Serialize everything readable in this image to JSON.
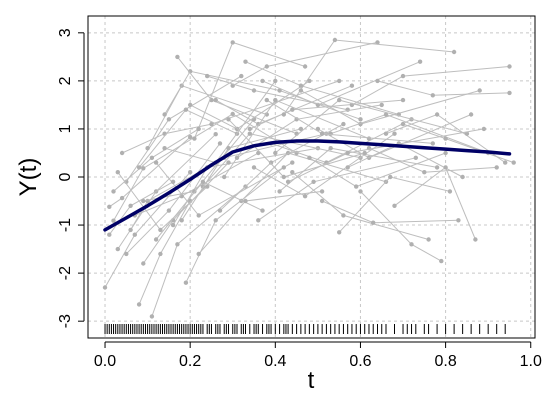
{
  "chart_data": {
    "type": "line",
    "title": "",
    "xlabel": "t",
    "ylabel": "Y(t)",
    "xlim": [
      -0.04,
      1.01
    ],
    "ylim": [
      -3.35,
      3.35
    ],
    "x_ticks": [
      0.0,
      0.2,
      0.4,
      0.6,
      0.8,
      1.0
    ],
    "x_tick_labels": [
      "0.0",
      "0.2",
      "0.4",
      "0.6",
      "0.8",
      "1.0"
    ],
    "y_ticks": [
      -3,
      -2,
      -1,
      0,
      1,
      2,
      3
    ],
    "y_tick_labels": [
      "-3",
      "-2",
      "-1",
      "0",
      "1",
      "2",
      "3"
    ],
    "grid": true,
    "colors": {
      "mean_curve": "#000066",
      "trajectories": "#bebebe",
      "points": "#b0b0b0",
      "rug": "#000000"
    },
    "series": [
      {
        "role": "mean",
        "x": [
          0.0,
          0.05,
          0.1,
          0.15,
          0.2,
          0.25,
          0.3,
          0.35,
          0.4,
          0.45,
          0.5,
          0.55,
          0.6,
          0.65,
          0.7,
          0.75,
          0.8,
          0.85,
          0.9,
          0.95
        ],
        "y": [
          -1.1,
          -0.85,
          -0.6,
          -0.33,
          -0.05,
          0.25,
          0.52,
          0.65,
          0.72,
          0.75,
          0.75,
          0.73,
          0.7,
          0.67,
          0.64,
          0.61,
          0.58,
          0.55,
          0.52,
          0.48
        ]
      },
      {
        "role": "individual",
        "trajectories": [
          [
            [
              0.01,
              -0.62
            ],
            [
              0.04,
              -0.44
            ],
            [
              0.2,
              0.83
            ]
          ],
          [
            [
              0.02,
              -0.91
            ],
            [
              0.09,
              0.18
            ],
            [
              0.3,
              1.31
            ],
            [
              0.45,
              0.5
            ]
          ],
          [
            [
              0.03,
              -1.5
            ],
            [
              0.12,
              -0.3
            ],
            [
              0.26,
              0.89
            ]
          ],
          [
            [
              0.0,
              -2.3
            ],
            [
              0.07,
              -1.2
            ],
            [
              0.2,
              0.1
            ]
          ],
          [
            [
              0.05,
              -0.1
            ],
            [
              0.15,
              1.2
            ],
            [
              0.32,
              2.1
            ]
          ],
          [
            [
              0.06,
              -1.1
            ],
            [
              0.1,
              -0.5
            ],
            [
              0.28,
              0.4
            ],
            [
              0.52,
              0.9
            ]
          ],
          [
            [
              0.08,
              -2.65
            ],
            [
              0.13,
              -1.6
            ],
            [
              0.2,
              -0.5
            ]
          ],
          [
            [
              0.1,
              0.6
            ],
            [
              0.18,
              1.9
            ],
            [
              0.38,
              1.3
            ]
          ],
          [
            [
              0.11,
              -2.9
            ],
            [
              0.17,
              -1.4
            ],
            [
              0.33,
              -0.2
            ]
          ],
          [
            [
              0.12,
              0.3
            ],
            [
              0.22,
              -0.8
            ],
            [
              0.44,
              0.3
            ]
          ],
          [
            [
              0.14,
              1.3
            ],
            [
              0.2,
              2.2
            ],
            [
              0.41,
              1.8
            ],
            [
              0.6,
              1.2
            ]
          ],
          [
            [
              0.16,
              -1.0
            ],
            [
              0.24,
              0.2
            ],
            [
              0.5,
              0.6
            ]
          ],
          [
            [
              0.04,
              0.5
            ],
            [
              0.14,
              0.9
            ],
            [
              0.25,
              1.1
            ],
            [
              0.55,
              2.0
            ]
          ],
          [
            [
              0.07,
              -0.8
            ],
            [
              0.18,
              -0.4
            ],
            [
              0.36,
              0.5
            ]
          ],
          [
            [
              0.09,
              -1.8
            ],
            [
              0.16,
              -0.9
            ],
            [
              0.29,
              0.3
            ]
          ],
          [
            [
              0.17,
              2.5
            ],
            [
              0.25,
              1.6
            ],
            [
              0.45,
              0.9
            ]
          ],
          [
            [
              0.19,
              -2.2
            ],
            [
              0.26,
              -0.9
            ],
            [
              0.42,
              0.2
            ]
          ],
          [
            [
              0.21,
              0.8
            ],
            [
              0.3,
              2.8
            ],
            [
              0.47,
              2.3
            ]
          ],
          [
            [
              0.23,
              -0.2
            ],
            [
              0.34,
              0.9
            ],
            [
              0.6,
              0.4
            ]
          ],
          [
            [
              0.26,
              1.6
            ],
            [
              0.36,
              1.1
            ],
            [
              0.58,
              1.9
            ]
          ],
          [
            [
              0.28,
              0.0
            ],
            [
              0.4,
              1.6
            ],
            [
              0.62,
              0.8
            ]
          ],
          [
            [
              0.3,
              1.9
            ],
            [
              0.38,
              2.3
            ],
            [
              0.64,
              2.8
            ]
          ],
          [
            [
              0.32,
              -0.5
            ],
            [
              0.43,
              0.5
            ],
            [
              0.66,
              -0.1
            ]
          ],
          [
            [
              0.34,
              1.0
            ],
            [
              0.44,
              1.4
            ],
            [
              0.7,
              1.6
            ]
          ],
          [
            [
              0.35,
              0.2
            ],
            [
              0.47,
              -0.4
            ],
            [
              0.68,
              0.9
            ]
          ],
          [
            [
              0.37,
              2.0
            ],
            [
              0.5,
              1.5
            ],
            [
              0.74,
              2.4
            ]
          ],
          [
            [
              0.39,
              0.7
            ],
            [
              0.52,
              0.3
            ],
            [
              0.72,
              1.2
            ]
          ],
          [
            [
              0.41,
              -0.3
            ],
            [
              0.53,
              0.6
            ],
            [
              0.78,
              0.2
            ]
          ],
          [
            [
              0.42,
              1.3
            ],
            [
              0.54,
              2.85
            ],
            [
              0.82,
              2.6
            ]
          ],
          [
            [
              0.44,
              0.1
            ],
            [
              0.56,
              -0.8
            ],
            [
              0.76,
              -1.3
            ]
          ],
          [
            [
              0.46,
              1.8
            ],
            [
              0.6,
              1.1
            ],
            [
              0.88,
              1.8
            ]
          ],
          [
            [
              0.48,
              0.4
            ],
            [
              0.59,
              -0.2
            ],
            [
              0.8,
              0.5
            ]
          ],
          [
            [
              0.5,
              1.0
            ],
            [
              0.62,
              0.4
            ],
            [
              0.86,
              1.3
            ]
          ],
          [
            [
              0.51,
              -0.5
            ],
            [
              0.63,
              -0.95
            ],
            [
              0.83,
              -0.9
            ]
          ],
          [
            [
              0.53,
              0.9
            ],
            [
              0.66,
              1.3
            ],
            [
              0.9,
              0.5
            ]
          ],
          [
            [
              0.55,
              -1.15
            ],
            [
              0.67,
              0.0
            ],
            [
              0.81,
              -0.3
            ]
          ],
          [
            [
              0.57,
              0.2
            ],
            [
              0.69,
              0.7
            ],
            [
              0.84,
              0.0
            ]
          ],
          [
            [
              0.58,
              1.5
            ],
            [
              0.7,
              2.1
            ],
            [
              0.95,
              2.3
            ]
          ],
          [
            [
              0.6,
              -0.3
            ],
            [
              0.72,
              -1.4
            ],
            [
              0.79,
              -1.75
            ]
          ],
          [
            [
              0.62,
              0.6
            ],
            [
              0.75,
              0.1
            ],
            [
              0.92,
              0.2
            ]
          ],
          [
            [
              0.64,
              2.0
            ],
            [
              0.77,
              1.7
            ],
            [
              0.95,
              1.75
            ]
          ],
          [
            [
              0.66,
              0.9
            ],
            [
              0.78,
              1.3
            ],
            [
              0.94,
              0.3
            ]
          ],
          [
            [
              0.68,
              -0.6
            ],
            [
              0.8,
              0.2
            ],
            [
              0.87,
              -1.3
            ]
          ],
          [
            [
              0.7,
              1.1
            ],
            [
              0.8,
              0.8
            ],
            [
              0.96,
              0.3
            ]
          ],
          [
            [
              0.01,
              -1.2
            ],
            [
              0.06,
              -0.6
            ],
            [
              0.16,
              -0.1
            ]
          ],
          [
            [
              0.02,
              -0.3
            ],
            [
              0.11,
              0.4
            ],
            [
              0.22,
              1.0
            ]
          ],
          [
            [
              0.03,
              0.1
            ],
            [
              0.13,
              -1.1
            ],
            [
              0.24,
              -0.2
            ]
          ],
          [
            [
              0.05,
              -1.6
            ],
            [
              0.15,
              -0.7
            ],
            [
              0.27,
              0.7
            ]
          ],
          [
            [
              0.08,
              0.2
            ],
            [
              0.19,
              1.4
            ],
            [
              0.31,
              0.9
            ]
          ],
          [
            [
              0.09,
              -0.5
            ],
            [
              0.21,
              -0.3
            ],
            [
              0.35,
              1.2
            ]
          ],
          [
            [
              0.12,
              -1.3
            ],
            [
              0.23,
              -0.1
            ],
            [
              0.37,
              -0.7
            ]
          ],
          [
            [
              0.14,
              0.6
            ],
            [
              0.26,
              0.3
            ],
            [
              0.4,
              2.0
            ]
          ],
          [
            [
              0.18,
              -0.9
            ],
            [
              0.29,
              0.6
            ],
            [
              0.46,
              1.0
            ]
          ],
          [
            [
              0.2,
              1.5
            ],
            [
              0.31,
              1.0
            ],
            [
              0.48,
              2.0
            ]
          ],
          [
            [
              0.22,
              -1.6
            ],
            [
              0.33,
              -0.5
            ],
            [
              0.51,
              -0.3
            ]
          ],
          [
            [
              0.24,
              2.1
            ],
            [
              0.35,
              1.8
            ],
            [
              0.57,
              1.4
            ]
          ],
          [
            [
              0.27,
              -0.7
            ],
            [
              0.39,
              0.3
            ],
            [
              0.56,
              1.1
            ]
          ],
          [
            [
              0.29,
              1.2
            ],
            [
              0.42,
              0.0
            ],
            [
              0.61,
              0.5
            ]
          ],
          [
            [
              0.31,
              0.4
            ],
            [
              0.45,
              1.2
            ],
            [
              0.65,
              1.5
            ]
          ],
          [
            [
              0.33,
              2.4
            ],
            [
              0.46,
              1.9
            ],
            [
              0.69,
              1.3
            ]
          ],
          [
            [
              0.36,
              -0.9
            ],
            [
              0.49,
              -0.1
            ],
            [
              0.73,
              0.4
            ]
          ],
          [
            [
              0.38,
              1.6
            ],
            [
              0.51,
              0.9
            ],
            [
              0.77,
              0.7
            ]
          ],
          [
            [
              0.4,
              0.5
            ],
            [
              0.55,
              1.6
            ],
            [
              0.85,
              0.9
            ]
          ],
          [
            [
              0.43,
              -0.1
            ],
            [
              0.57,
              0.5
            ],
            [
              0.89,
              1.0
            ]
          ]
        ]
      }
    ],
    "rug_t": [
      0.0,
      0.005,
      0.01,
      0.015,
      0.02,
      0.025,
      0.03,
      0.035,
      0.04,
      0.045,
      0.05,
      0.055,
      0.06,
      0.065,
      0.07,
      0.075,
      0.08,
      0.085,
      0.09,
      0.095,
      0.1,
      0.105,
      0.11,
      0.115,
      0.12,
      0.125,
      0.13,
      0.135,
      0.14,
      0.145,
      0.15,
      0.155,
      0.16,
      0.165,
      0.17,
      0.175,
      0.18,
      0.185,
      0.19,
      0.195,
      0.2,
      0.205,
      0.21,
      0.215,
      0.22,
      0.225,
      0.23,
      0.24,
      0.245,
      0.25,
      0.26,
      0.265,
      0.27,
      0.28,
      0.285,
      0.29,
      0.3,
      0.305,
      0.31,
      0.32,
      0.325,
      0.33,
      0.34,
      0.35,
      0.355,
      0.36,
      0.37,
      0.38,
      0.385,
      0.39,
      0.4,
      0.41,
      0.42,
      0.425,
      0.43,
      0.44,
      0.45,
      0.46,
      0.47,
      0.48,
      0.49,
      0.5,
      0.51,
      0.52,
      0.53,
      0.54,
      0.55,
      0.56,
      0.57,
      0.58,
      0.59,
      0.6,
      0.61,
      0.62,
      0.63,
      0.64,
      0.65,
      0.66,
      0.68,
      0.7,
      0.71,
      0.72,
      0.73,
      0.75,
      0.76,
      0.78,
      0.8,
      0.82,
      0.84,
      0.86,
      0.88,
      0.9,
      0.92,
      0.94
    ]
  }
}
